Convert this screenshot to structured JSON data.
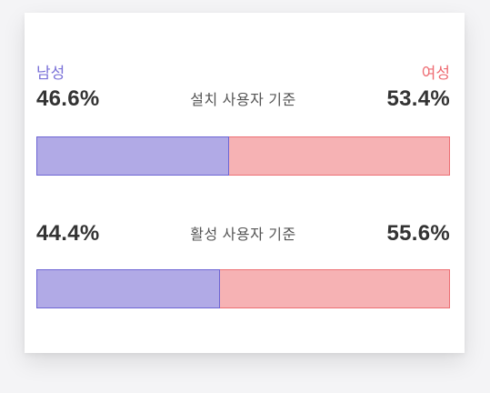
{
  "chart_data": {
    "type": "bar",
    "orientation": "horizontal-stacked",
    "legend": {
      "male": "남성",
      "female": "여성"
    },
    "colors": {
      "male_fill": "#b1aae6",
      "male_border": "#6e66d4",
      "male_text": "#7a71d8",
      "female_fill": "#f6b2b4",
      "female_border": "#ec6f74",
      "female_text": "#ee6b72"
    },
    "series": [
      {
        "category": "설치 사용자 기준",
        "male": 46.6,
        "female": 53.4,
        "male_label": "46.6%",
        "female_label": "53.4%"
      },
      {
        "category": "활성 사용자 기준",
        "male": 44.4,
        "female": 55.6,
        "male_label": "44.4%",
        "female_label": "55.6%"
      }
    ]
  }
}
